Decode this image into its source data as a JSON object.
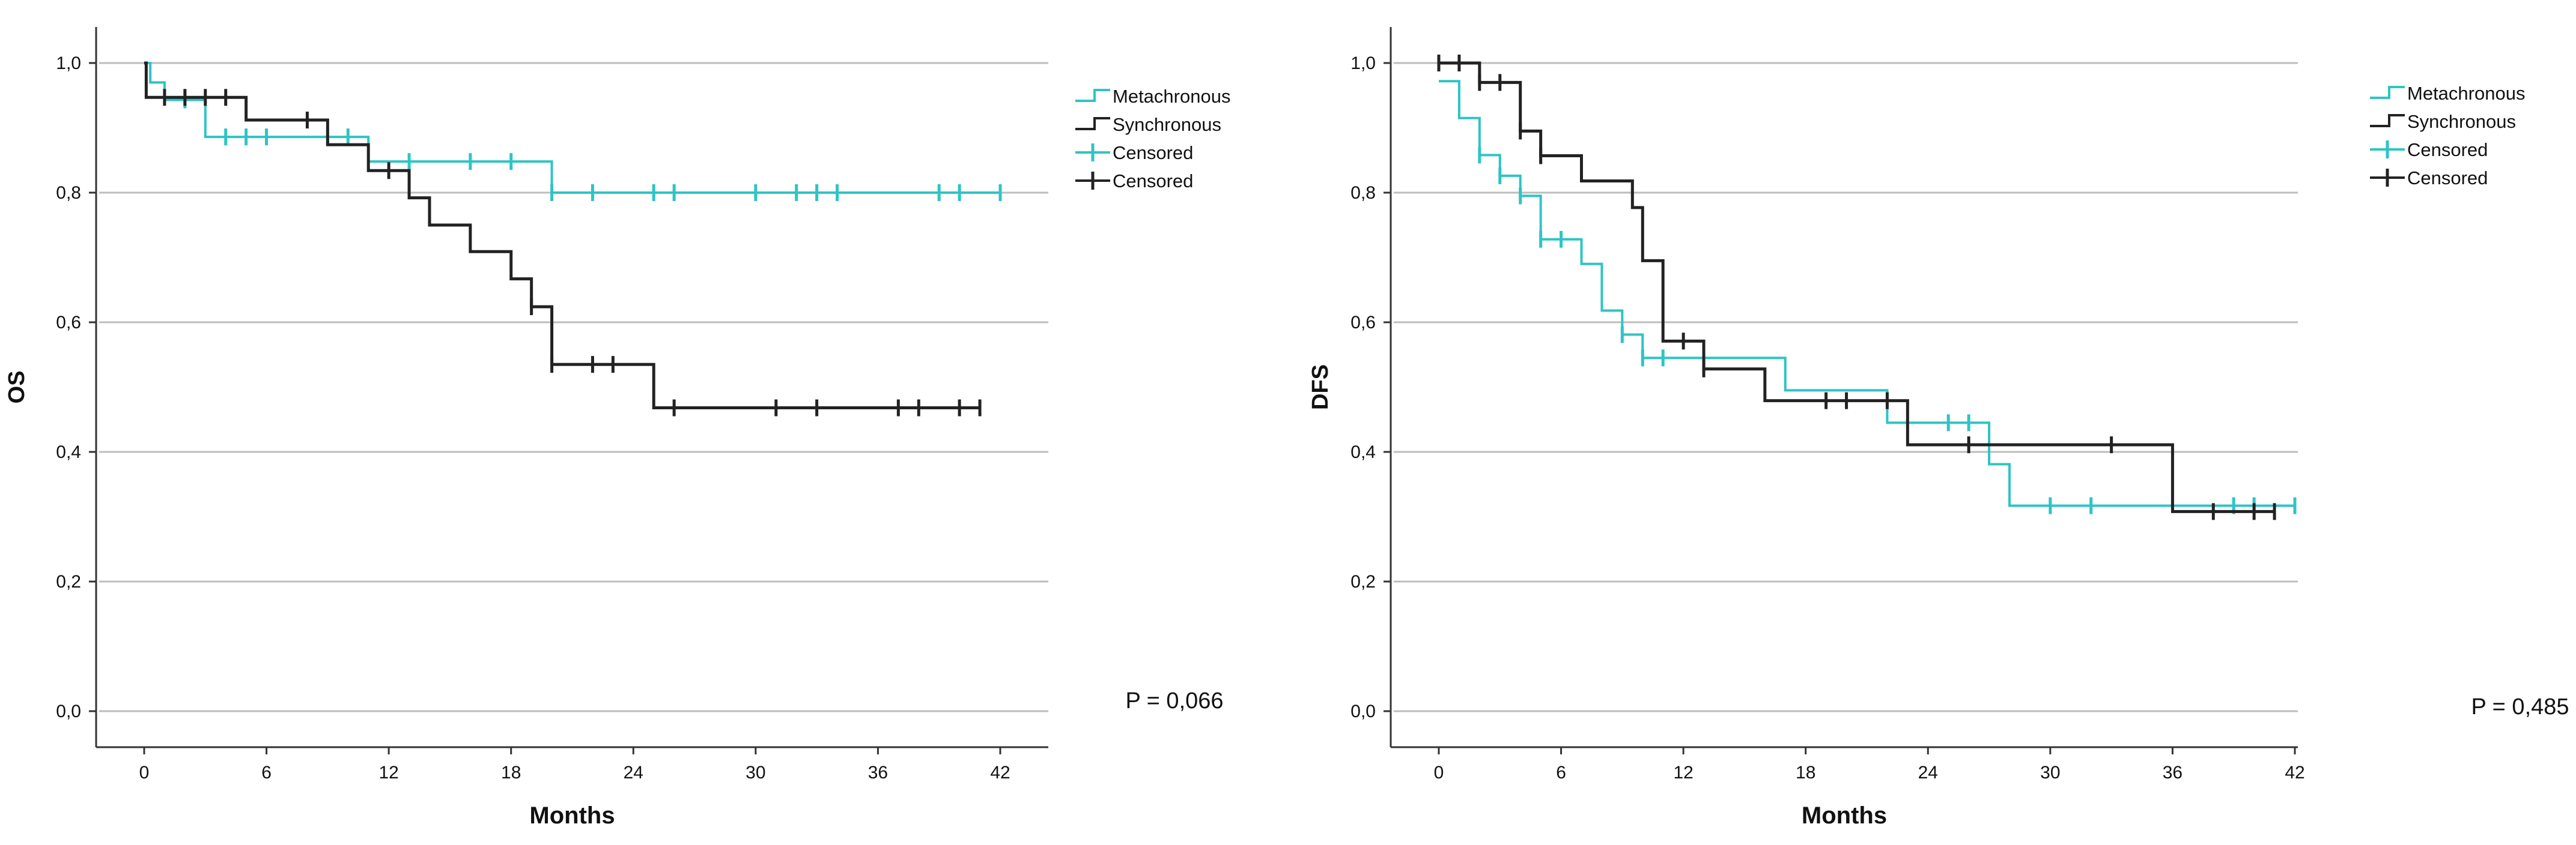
{
  "colors": {
    "metachronous": "#2ec4c4",
    "synchronous": "#222222",
    "axis": "#333333",
    "grid": "#bdbdbd",
    "text": "#111111"
  },
  "chart_data": [
    {
      "type": "line",
      "ylabel": "OS",
      "xlabel": "Months",
      "xlim": [
        0,
        42
      ],
      "ylim": [
        0.0,
        1.0
      ],
      "xticks": [
        0,
        6,
        12,
        18,
        24,
        30,
        36,
        42
      ],
      "xtick_labels": [
        "0",
        "6",
        "12",
        "18",
        "24",
        "30",
        "36",
        "42"
      ],
      "yticks": [
        0.0,
        0.2,
        0.4,
        0.6,
        0.8,
        1.0
      ],
      "ytick_labels": [
        "0,0",
        "0,2",
        "0,4",
        "0,6",
        "0,8",
        "1,0"
      ],
      "grid": "horizontal",
      "legend_position": "top-right",
      "legend": [
        "Metachronous",
        "Synchronous",
        "Censored",
        "Censored"
      ],
      "annotation": "P = 0,066",
      "series": [
        {
          "name": "Metachronous",
          "color": "#2ec4c4",
          "steps": [
            [
              0,
              1.0
            ],
            [
              0.3,
              0.97
            ],
            [
              1,
              0.943
            ],
            [
              3,
              0.886
            ],
            [
              11,
              0.848
            ],
            [
              20,
              0.8
            ],
            [
              42,
              0.8
            ]
          ],
          "censored": [
            [
              2,
              0.943
            ],
            [
              4,
              0.886
            ],
            [
              5,
              0.886
            ],
            [
              6,
              0.886
            ],
            [
              9,
              0.886
            ],
            [
              10,
              0.886
            ],
            [
              13,
              0.848
            ],
            [
              16,
              0.848
            ],
            [
              18,
              0.848
            ],
            [
              20,
              0.8
            ],
            [
              22,
              0.8
            ],
            [
              25,
              0.8
            ],
            [
              26,
              0.8
            ],
            [
              30,
              0.8
            ],
            [
              32,
              0.8
            ],
            [
              33,
              0.8
            ],
            [
              34,
              0.8
            ],
            [
              39,
              0.8
            ],
            [
              40,
              0.8
            ],
            [
              42,
              0.8
            ]
          ]
        },
        {
          "name": "Synchronous",
          "color": "#222222",
          "steps": [
            [
              0,
              1.0
            ],
            [
              0.1,
              0.947
            ],
            [
              5,
              0.912
            ],
            [
              9,
              0.874
            ],
            [
              11,
              0.834
            ],
            [
              13,
              0.792
            ],
            [
              14,
              0.75
            ],
            [
              16,
              0.709
            ],
            [
              18,
              0.667
            ],
            [
              19,
              0.624
            ],
            [
              20,
              0.535
            ],
            [
              25,
              0.468
            ],
            [
              41,
              0.468
            ]
          ],
          "censored": [
            [
              1,
              0.947
            ],
            [
              2,
              0.947
            ],
            [
              3,
              0.947
            ],
            [
              4,
              0.947
            ],
            [
              8,
              0.912
            ],
            [
              12,
              0.834
            ],
            [
              19,
              0.624
            ],
            [
              20,
              0.535
            ],
            [
              22,
              0.535
            ],
            [
              23,
              0.535
            ],
            [
              26,
              0.468
            ],
            [
              31,
              0.468
            ],
            [
              33,
              0.468
            ],
            [
              37,
              0.468
            ],
            [
              38,
              0.468
            ],
            [
              40,
              0.468
            ],
            [
              41,
              0.468
            ]
          ]
        }
      ]
    },
    {
      "type": "line",
      "ylabel": "DFS",
      "xlabel": "Months",
      "xlim": [
        0,
        42
      ],
      "ylim": [
        0.0,
        1.0
      ],
      "xticks": [
        0,
        6,
        12,
        18,
        24,
        30,
        36,
        42
      ],
      "xtick_labels": [
        "0",
        "6",
        "12",
        "18",
        "24",
        "30",
        "36",
        "42"
      ],
      "yticks": [
        0.0,
        0.2,
        0.4,
        0.6,
        0.8,
        1.0
      ],
      "ytick_labels": [
        "0,0",
        "0,2",
        "0,4",
        "0,6",
        "0,8",
        "1,0"
      ],
      "grid": "horizontal",
      "legend_position": "top-right",
      "legend": [
        "Metachronous",
        "Synchronous",
        "Censored",
        "Censored"
      ],
      "annotation": "P = 0,485",
      "series": [
        {
          "name": "Metachronous",
          "color": "#2ec4c4",
          "steps": [
            [
              0,
              0.972
            ],
            [
              1,
              0.915
            ],
            [
              2,
              0.858
            ],
            [
              3,
              0.826
            ],
            [
              4,
              0.795
            ],
            [
              5,
              0.728
            ],
            [
              7,
              0.69
            ],
            [
              8,
              0.618
            ],
            [
              9,
              0.581
            ],
            [
              10,
              0.545
            ],
            [
              17,
              0.495
            ],
            [
              22,
              0.445
            ],
            [
              27,
              0.381
            ],
            [
              28,
              0.317
            ],
            [
              42,
              0.317
            ]
          ],
          "censored": [
            [
              2,
              0.858
            ],
            [
              3,
              0.826
            ],
            [
              4,
              0.795
            ],
            [
              5,
              0.728
            ],
            [
              6,
              0.728
            ],
            [
              9,
              0.581
            ],
            [
              10,
              0.545
            ],
            [
              11,
              0.545
            ],
            [
              25,
              0.445
            ],
            [
              26,
              0.445
            ],
            [
              30,
              0.317
            ],
            [
              32,
              0.317
            ],
            [
              39,
              0.317
            ],
            [
              40,
              0.317
            ],
            [
              42,
              0.317
            ]
          ]
        },
        {
          "name": "Synchronous",
          "color": "#222222",
          "steps": [
            [
              0,
              1.0
            ],
            [
              2,
              0.97
            ],
            [
              4,
              0.895
            ],
            [
              5,
              0.857
            ],
            [
              7,
              0.818
            ],
            [
              9.5,
              0.777
            ],
            [
              10,
              0.695
            ],
            [
              11,
              0.571
            ],
            [
              13,
              0.528
            ],
            [
              16,
              0.479
            ],
            [
              23,
              0.411
            ],
            [
              36,
              0.308
            ],
            [
              41,
              0.308
            ]
          ],
          "censored": [
            [
              0,
              1.0
            ],
            [
              1,
              1.0
            ],
            [
              2,
              0.97
            ],
            [
              3,
              0.97
            ],
            [
              4,
              0.895
            ],
            [
              5,
              0.857
            ],
            [
              12,
              0.571
            ],
            [
              13,
              0.528
            ],
            [
              19,
              0.479
            ],
            [
              20,
              0.479
            ],
            [
              22,
              0.479
            ],
            [
              26,
              0.411
            ],
            [
              33,
              0.411
            ],
            [
              38,
              0.308
            ],
            [
              40,
              0.308
            ],
            [
              41,
              0.308
            ]
          ]
        }
      ]
    }
  ]
}
